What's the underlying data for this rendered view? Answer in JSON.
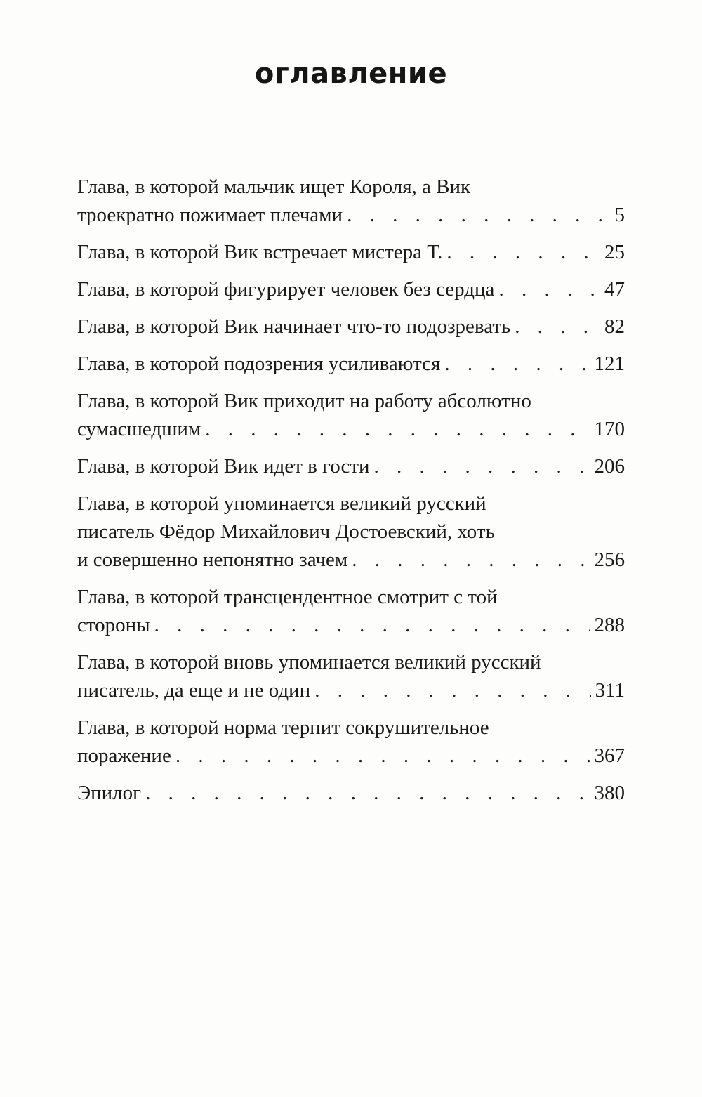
{
  "title": "оглавление",
  "entries": [
    {
      "lines": [
        "Глава, в которой мальчик ищет Короля, а Вик",
        "троекратно пожимает плечами"
      ],
      "page": "5"
    },
    {
      "lines": [
        "Глава, в которой Вик встречает мистера Т."
      ],
      "page": "25"
    },
    {
      "lines": [
        "Глава, в которой фигурирует человек без сердца"
      ],
      "page": "47"
    },
    {
      "lines": [
        "Глава, в которой Вик начинает что-то подозревать"
      ],
      "page": "82"
    },
    {
      "lines": [
        "Глава, в которой подозрения усиливаются"
      ],
      "page": "121"
    },
    {
      "lines": [
        "Глава, в которой Вик приходит на работу абсолютно",
        "сумасшедшим"
      ],
      "page": "170"
    },
    {
      "lines": [
        "Глава, в которой Вик идет в гости"
      ],
      "page": "206"
    },
    {
      "lines": [
        "Глава, в которой упоминается великий русский",
        "писатель Фёдор Михайлович Достоевский, хоть",
        "и совершенно непонятно зачем"
      ],
      "page": "256"
    },
    {
      "lines": [
        "Глава, в которой трансцендентное смотрит с той",
        "стороны"
      ],
      "page": "288"
    },
    {
      "lines": [
        "Глава, в которой вновь упоминается великий русский",
        "писатель, да еще и не один"
      ],
      "page": "311"
    },
    {
      "lines": [
        "Глава, в которой норма терпит сокрушительное",
        "поражение"
      ],
      "page": "367"
    },
    {
      "lines": [
        "Эпилог"
      ],
      "page": "380"
    }
  ]
}
